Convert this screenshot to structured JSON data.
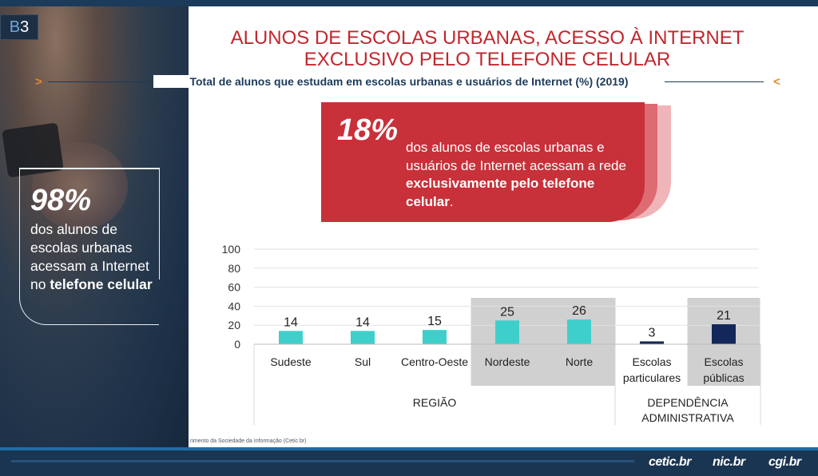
{
  "badge": {
    "prefix": "B",
    "num": "3"
  },
  "title_line1": "ALUNOS DE ESCOLAS URBANAS, ACESSO À INTERNET",
  "title_line2": "EXCLUSIVO PELO TELEFONE CELULAR",
  "subtitle": "Total de alunos que estudam em escolas urbanas e usuários de Internet (%) (2019)",
  "left_stat": {
    "value": "98%",
    "text_plain": "dos alunos de escolas urbanas acessam a Internet no",
    "text_bold": "telefone celular"
  },
  "callout": {
    "value": "18%",
    "text_plain": "dos alunos de escolas urbanas e usuários de Internet acessam a rede",
    "text_bold": "exclusivamente pelo telefone celular",
    "text_end": "."
  },
  "source_text": "rimento da Sociedade da Informação (Cetic.br)",
  "logos": {
    "cetic": "cetic.br",
    "nic": "nic.br",
    "cgi": "cgi.br"
  },
  "colors": {
    "accent_red": "#c8313a",
    "teal": "#3fcfcb",
    "navy": "#14275a",
    "highlight": "#d0d0d0",
    "title_red": "#c1272d",
    "text_navy": "#1c3a5a"
  },
  "chart_data": {
    "type": "bar",
    "ylim": [
      0,
      100
    ],
    "yticks": [
      0,
      20,
      40,
      60,
      80,
      100
    ],
    "groups": [
      {
        "label": "REGIÃO",
        "categories": [
          "Sudeste",
          "Sul",
          "Centro-Oeste",
          "Nordeste",
          "Norte"
        ],
        "values": [
          14,
          14,
          15,
          25,
          26
        ],
        "color": "#3fcfcb",
        "highlighted": [
          false,
          false,
          false,
          true,
          true
        ]
      },
      {
        "label": "DEPENDÊNCIA ADMINISTRATIVA",
        "categories": [
          "Escolas particulares",
          "Escolas públicas"
        ],
        "values": [
          3,
          21
        ],
        "color": "#14275a",
        "highlighted": [
          false,
          true
        ]
      }
    ]
  }
}
